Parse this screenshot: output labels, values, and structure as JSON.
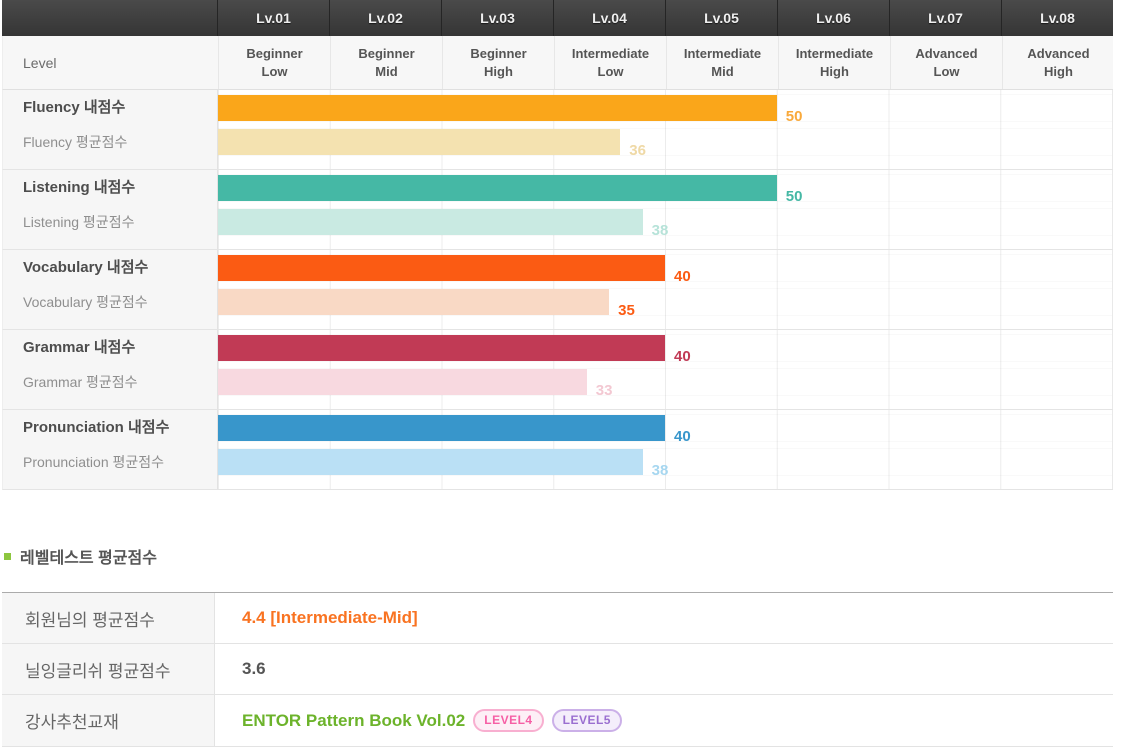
{
  "chart_data": {
    "type": "bar",
    "orientation": "horizontal",
    "value_axis": {
      "min": 0,
      "max": 80,
      "points_per_level": 10
    },
    "header_colors": {
      "bg": "#3d3d3d",
      "text": "#efefef"
    },
    "level_row_label": "Level",
    "levels": [
      {
        "code": "Lv.01",
        "name_line1": "Beginner",
        "name_line2": "Low"
      },
      {
        "code": "Lv.02",
        "name_line1": "Beginner",
        "name_line2": "Mid"
      },
      {
        "code": "Lv.03",
        "name_line1": "Beginner",
        "name_line2": "High"
      },
      {
        "code": "Lv.04",
        "name_line1": "Intermediate",
        "name_line2": "Low"
      },
      {
        "code": "Lv.05",
        "name_line1": "Intermediate",
        "name_line2": "Mid"
      },
      {
        "code": "Lv.06",
        "name_line1": "Intermediate",
        "name_line2": "High"
      },
      {
        "code": "Lv.07",
        "name_line1": "Advanced",
        "name_line2": "Low"
      },
      {
        "code": "Lv.08",
        "name_line1": "Advanced",
        "name_line2": "High"
      }
    ],
    "skills": [
      {
        "skill": "Fluency",
        "my_label": "Fluency 내점수",
        "avg_label": "Fluency 평균점수",
        "my_score": 50,
        "avg_score": 36,
        "my_color": "#FAA61A",
        "my_value_color": "#F9A93B",
        "avg_color": "#F4E2B0",
        "avg_value_color": "#EFD9A6"
      },
      {
        "skill": "Listening",
        "my_label": "Listening 내점수",
        "avg_label": "Listening 평균점수",
        "my_score": 50,
        "avg_score": 38,
        "my_color": "#45B8A5",
        "my_value_color": "#45B8A5",
        "avg_color": "#C9EAE2",
        "avg_value_color": "#B7E3D9"
      },
      {
        "skill": "Vocabulary",
        "my_label": "Vocabulary 내점수",
        "avg_label": "Vocabulary 평균점수",
        "my_score": 40,
        "avg_score": 35,
        "my_color": "#FB5B13",
        "my_value_color": "#FB5B13",
        "avg_color": "#F9D9C5",
        "avg_value_color": "#FB5B13"
      },
      {
        "skill": "Grammar",
        "my_label": "Grammar 내점수",
        "avg_label": "Grammar 평균점수",
        "my_score": 40,
        "avg_score": 33,
        "my_color": "#C13A55",
        "my_value_color": "#C13A55",
        "avg_color": "#F8D9E0",
        "avg_value_color": "#F3C8D2"
      },
      {
        "skill": "Pronunciation",
        "my_label": "Pronunciation 내점수",
        "avg_label": "Pronunciation 평균점수",
        "my_score": 40,
        "avg_score": 38,
        "my_color": "#3896CB",
        "my_value_color": "#3896CB",
        "avg_color": "#BAE0F5",
        "avg_value_color": "#A7D7F0"
      }
    ]
  },
  "summary": {
    "title": "레벨테스트 평균점수",
    "bullet_color": "#8DC63F",
    "rows": [
      {
        "label": "회원님의 평균점수",
        "value": "4.4 [Intermediate-Mid]",
        "value_color": "#F97321"
      },
      {
        "label": "닐잉글리쉬 평균점수",
        "value": "3.6",
        "value_color": "#555555"
      },
      {
        "label": "강사추천교재",
        "value": "ENTOR Pattern Book Vol.02",
        "value_color": "#6CB32B",
        "badges": [
          {
            "label": "LEVEL4",
            "text_color": "#F65FA5",
            "border_color": "#F8AFD0",
            "bg": "#FDEFF6"
          },
          {
            "label": "LEVEL5",
            "text_color": "#9A6FD0",
            "border_color": "#CBB0E8",
            "bg": "#F4EEFB"
          }
        ]
      }
    ]
  }
}
